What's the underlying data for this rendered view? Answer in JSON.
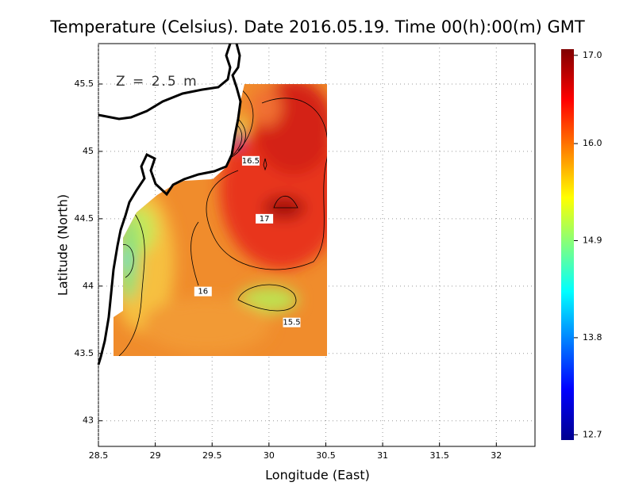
{
  "chart_data": {
    "type": "contour",
    "title": "Temperature (Celsius). Date 2016.05.19. Time 00(h):00(m) GMT",
    "annotation": "Z = 2.5 m",
    "xlabel": "Longitude (East)",
    "ylabel": "Latitude (North)",
    "xlim": [
      28.5,
      32.34
    ],
    "ylim": [
      42.81,
      45.8
    ],
    "xticks": [
      28.5,
      29,
      29.5,
      30,
      30.5,
      31,
      31.5,
      32
    ],
    "yticks": [
      43,
      43.5,
      44,
      44.5,
      45,
      45.5
    ],
    "grid": true,
    "colorbar": {
      "lim": [
        12.64,
        17.07
      ],
      "ticks": [
        12.7,
        13.8,
        14.9,
        {
          "value": 16,
          "label": "16.0"
        },
        {
          "value": 17,
          "label": "17.0"
        }
      ]
    },
    "contour_labels": [
      {
        "value": 16.5,
        "x": 29.84,
        "y": 44.93
      },
      {
        "value": 17,
        "x": 29.96,
        "y": 44.5
      },
      {
        "value": 16,
        "x": 29.42,
        "y": 43.96
      },
      {
        "value": 15.5,
        "x": 30.2,
        "y": 43.73
      }
    ]
  }
}
